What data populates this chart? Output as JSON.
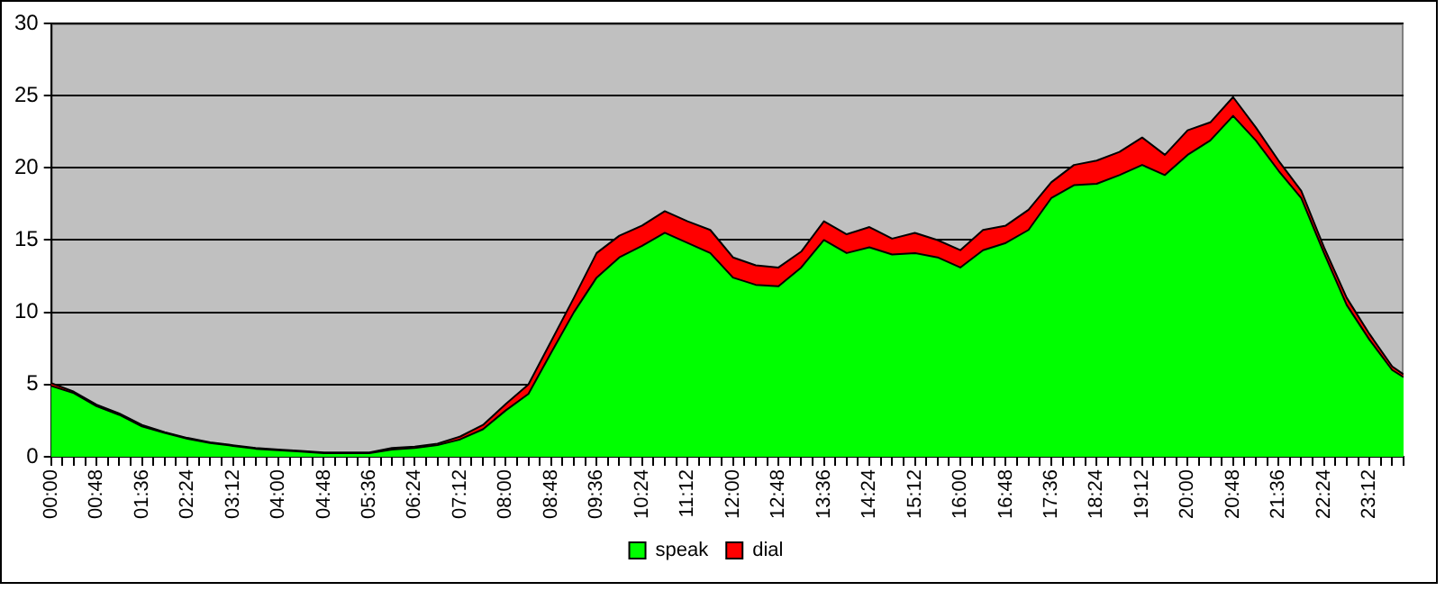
{
  "chart_data": {
    "type": "area",
    "stacked": true,
    "legend": "bottom",
    "grid": "y",
    "marker": "none",
    "xlim": [
      0,
      23.8
    ],
    "ylim": [
      0,
      30
    ],
    "yticks": [
      0,
      5,
      10,
      15,
      20,
      25,
      30
    ],
    "xticks": [
      {
        "value": 0,
        "label": "00:00"
      },
      {
        "value": 0.2,
        "label": null
      },
      {
        "value": 0.4,
        "label": null
      },
      {
        "value": 0.6,
        "label": null
      },
      {
        "value": 0.8,
        "label": "00:48"
      },
      {
        "value": 1,
        "label": null
      },
      {
        "value": 1.2,
        "label": null
      },
      {
        "value": 1.4,
        "label": null
      },
      {
        "value": 1.6,
        "label": "01:36"
      },
      {
        "value": 1.8,
        "label": null
      },
      {
        "value": 2,
        "label": null
      },
      {
        "value": 2.2,
        "label": null
      },
      {
        "value": 2.4,
        "label": "02:24"
      },
      {
        "value": 2.6,
        "label": null
      },
      {
        "value": 2.8,
        "label": null
      },
      {
        "value": 3,
        "label": null
      },
      {
        "value": 3.2,
        "label": "03:12"
      },
      {
        "value": 3.4,
        "label": null
      },
      {
        "value": 3.6,
        "label": null
      },
      {
        "value": 3.8,
        "label": null
      },
      {
        "value": 4,
        "label": "04:00"
      },
      {
        "value": 4.2,
        "label": null
      },
      {
        "value": 4.4,
        "label": null
      },
      {
        "value": 4.6,
        "label": null
      },
      {
        "value": 4.8,
        "label": "04:48"
      },
      {
        "value": 5,
        "label": null
      },
      {
        "value": 5.2,
        "label": null
      },
      {
        "value": 5.4,
        "label": null
      },
      {
        "value": 5.6,
        "label": "05:36"
      },
      {
        "value": 5.8,
        "label": null
      },
      {
        "value": 6,
        "label": null
      },
      {
        "value": 6.2,
        "label": null
      },
      {
        "value": 6.4,
        "label": "06:24"
      },
      {
        "value": 6.6,
        "label": null
      },
      {
        "value": 6.8,
        "label": null
      },
      {
        "value": 7,
        "label": null
      },
      {
        "value": 7.2,
        "label": "07:12"
      },
      {
        "value": 7.4,
        "label": null
      },
      {
        "value": 7.6,
        "label": null
      },
      {
        "value": 7.8,
        "label": null
      },
      {
        "value": 8,
        "label": "08:00"
      },
      {
        "value": 8.2,
        "label": null
      },
      {
        "value": 8.4,
        "label": null
      },
      {
        "value": 8.6,
        "label": null
      },
      {
        "value": 8.8,
        "label": "08:48"
      },
      {
        "value": 9,
        "label": null
      },
      {
        "value": 9.2,
        "label": null
      },
      {
        "value": 9.4,
        "label": null
      },
      {
        "value": 9.6,
        "label": "09:36"
      },
      {
        "value": 9.8,
        "label": null
      },
      {
        "value": 10,
        "label": null
      },
      {
        "value": 10.2,
        "label": null
      },
      {
        "value": 10.4,
        "label": "10:24"
      },
      {
        "value": 10.6,
        "label": null
      },
      {
        "value": 10.8,
        "label": null
      },
      {
        "value": 11,
        "label": null
      },
      {
        "value": 11.2,
        "label": "11:12"
      },
      {
        "value": 11.4,
        "label": null
      },
      {
        "value": 11.6,
        "label": null
      },
      {
        "value": 11.8,
        "label": null
      },
      {
        "value": 12,
        "label": "12:00"
      },
      {
        "value": 12.2,
        "label": null
      },
      {
        "value": 12.4,
        "label": null
      },
      {
        "value": 12.6,
        "label": null
      },
      {
        "value": 12.8,
        "label": "12:48"
      },
      {
        "value": 13,
        "label": null
      },
      {
        "value": 13.2,
        "label": null
      },
      {
        "value": 13.4,
        "label": null
      },
      {
        "value": 13.6,
        "label": "13:36"
      },
      {
        "value": 13.8,
        "label": null
      },
      {
        "value": 14,
        "label": null
      },
      {
        "value": 14.2,
        "label": null
      },
      {
        "value": 14.4,
        "label": "14:24"
      },
      {
        "value": 14.6,
        "label": null
      },
      {
        "value": 14.8,
        "label": null
      },
      {
        "value": 15,
        "label": null
      },
      {
        "value": 15.2,
        "label": "15:12"
      },
      {
        "value": 15.4,
        "label": null
      },
      {
        "value": 15.6,
        "label": null
      },
      {
        "value": 15.8,
        "label": null
      },
      {
        "value": 16,
        "label": "16:00"
      },
      {
        "value": 16.2,
        "label": null
      },
      {
        "value": 16.4,
        "label": null
      },
      {
        "value": 16.6,
        "label": null
      },
      {
        "value": 16.8,
        "label": "16:48"
      },
      {
        "value": 17,
        "label": null
      },
      {
        "value": 17.2,
        "label": null
      },
      {
        "value": 17.4,
        "label": null
      },
      {
        "value": 17.6,
        "label": "17:36"
      },
      {
        "value": 17.8,
        "label": null
      },
      {
        "value": 18,
        "label": null
      },
      {
        "value": 18.2,
        "label": null
      },
      {
        "value": 18.4,
        "label": "18:24"
      },
      {
        "value": 18.6,
        "label": null
      },
      {
        "value": 18.8,
        "label": null
      },
      {
        "value": 19,
        "label": null
      },
      {
        "value": 19.2,
        "label": "19:12"
      },
      {
        "value": 19.4,
        "label": null
      },
      {
        "value": 19.6,
        "label": null
      },
      {
        "value": 19.8,
        "label": null
      },
      {
        "value": 20,
        "label": "20:00"
      },
      {
        "value": 20.2,
        "label": null
      },
      {
        "value": 20.4,
        "label": null
      },
      {
        "value": 20.6,
        "label": null
      },
      {
        "value": 20.8,
        "label": "20:48"
      },
      {
        "value": 21,
        "label": null
      },
      {
        "value": 21.2,
        "label": null
      },
      {
        "value": 21.4,
        "label": null
      },
      {
        "value": 21.6,
        "label": "21:36"
      },
      {
        "value": 21.8,
        "label": null
      },
      {
        "value": 22,
        "label": null
      },
      {
        "value": 22.2,
        "label": null
      },
      {
        "value": 22.4,
        "label": "22:24"
      },
      {
        "value": 22.6,
        "label": null
      },
      {
        "value": 22.8,
        "label": null
      },
      {
        "value": 23,
        "label": null
      },
      {
        "value": 23.2,
        "label": "23:12"
      },
      {
        "value": 23.4,
        "label": null
      },
      {
        "value": 23.6,
        "label": null
      },
      {
        "value": 23.8,
        "label": null
      }
    ],
    "x": [
      0,
      0.4,
      0.8,
      1.2,
      1.6,
      2,
      2.4,
      2.8,
      3.2,
      3.6,
      4,
      4.4,
      4.8,
      5.2,
      5.6,
      6,
      6.4,
      6.8,
      7.2,
      7.6,
      8,
      8.4,
      8.8,
      9.2,
      9.6,
      10,
      10.4,
      10.8,
      11.2,
      11.6,
      12,
      12.4,
      12.8,
      13.2,
      13.6,
      14,
      14.4,
      14.8,
      15.2,
      15.6,
      16,
      16.4,
      16.8,
      17.2,
      17.6,
      18,
      18.4,
      18.8,
      19.2,
      19.6,
      20,
      20.4,
      20.8,
      21.2,
      21.6,
      22,
      22.4,
      22.8,
      23.2,
      23.6,
      23.8
    ],
    "series": [
      {
        "name": "speak",
        "color": "#00ff00",
        "values": [
          4.9,
          4.4,
          3.5,
          2.9,
          2.1,
          1.65,
          1.25,
          0.95,
          0.75,
          0.55,
          0.45,
          0.35,
          0.25,
          0.25,
          0.25,
          0.5,
          0.6,
          0.8,
          1.2,
          1.9,
          3.2,
          4.35,
          7.2,
          10.0,
          12.4,
          13.8,
          14.6,
          15.5,
          14.8,
          14.1,
          12.4,
          11.9,
          11.8,
          13.1,
          15.0,
          14.1,
          14.5,
          14.0,
          14.1,
          13.8,
          13.1,
          14.3,
          14.8,
          15.7,
          17.9,
          18.8,
          18.9,
          19.5,
          20.2,
          19.5,
          20.9,
          21.9,
          23.6,
          21.9,
          19.8,
          17.9,
          14.1,
          10.5,
          8.1,
          6.0,
          5.5
        ]
      },
      {
        "name": "dial",
        "color": "#ff0000",
        "values": [
          0.2,
          0.1,
          0.1,
          0.1,
          0.1,
          0.05,
          0.05,
          0.05,
          0.05,
          0.05,
          0.05,
          0.05,
          0.05,
          0.05,
          0.05,
          0.1,
          0.1,
          0.1,
          0.2,
          0.3,
          0.45,
          0.65,
          0.8,
          1.0,
          1.7,
          1.5,
          1.4,
          1.5,
          1.5,
          1.6,
          1.4,
          1.35,
          1.3,
          1.1,
          1.3,
          1.3,
          1.4,
          1.1,
          1.4,
          1.2,
          1.2,
          1.4,
          1.2,
          1.4,
          1.1,
          1.4,
          1.6,
          1.6,
          1.9,
          1.4,
          1.7,
          1.25,
          1.3,
          0.9,
          0.7,
          0.5,
          0.4,
          0.5,
          0.4,
          0.25,
          0.2
        ]
      }
    ]
  }
}
